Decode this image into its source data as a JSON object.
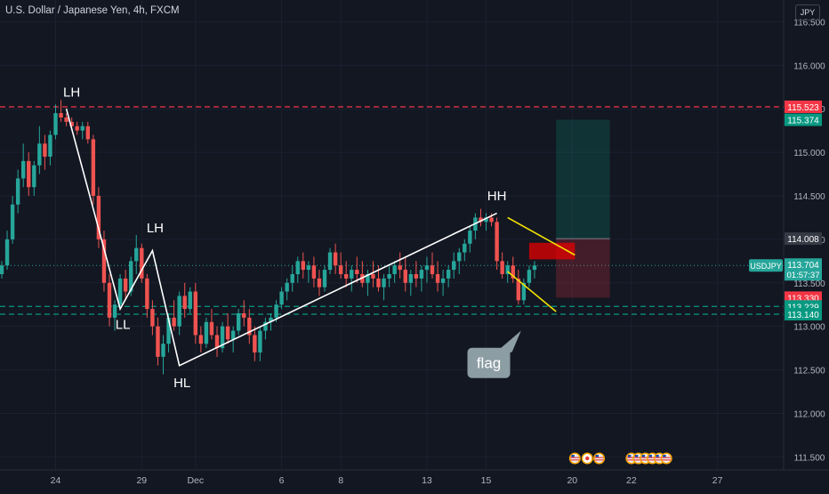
{
  "header": {
    "title": "U.S. Dollar / Japanese Yen, 4h, FXCM"
  },
  "currency_button": "JPY",
  "colors": {
    "background": "#131722",
    "up": "#26a69a",
    "down": "#ef5350",
    "axis_text": "#b2b5be",
    "grid": "#1c2030",
    "structure": "#ffffff",
    "flag_lines": "#f5e400",
    "resistance": "#f23645",
    "support": "#089981"
  },
  "chart_data": {
    "type": "candlestick",
    "title": "U.S. Dollar / Japanese Yen, 4h, FXCM",
    "symbol": "USDJPY",
    "ylim": [
      111.35,
      116.75
    ],
    "y_ticks": [
      116.5,
      116.0,
      115.5,
      115.0,
      114.5,
      114.0,
      113.5,
      113.0,
      112.5,
      112.0,
      111.5
    ],
    "y_tick_labels": [
      "116.500",
      "116.000",
      "115.500",
      "115.000",
      "114.500",
      "114.000",
      "113.500",
      "113.000",
      "112.500",
      "112.000",
      "111.500"
    ],
    "x_ticks": [
      {
        "label": "24",
        "idx": 10
      },
      {
        "label": "29",
        "idx": 26
      },
      {
        "label": "Dec",
        "idx": 36
      },
      {
        "label": "6",
        "idx": 52
      },
      {
        "label": "8",
        "idx": 63
      },
      {
        "label": "13",
        "idx": 79
      },
      {
        "label": "15",
        "idx": 90
      },
      {
        "label": "20",
        "idx": 106
      },
      {
        "label": "22",
        "idx": 117
      },
      {
        "label": "27",
        "idx": 133
      }
    ],
    "x_range": [
      0,
      143
    ],
    "ohlc": [
      [
        113.6,
        113.75,
        113.55,
        113.7
      ],
      [
        113.7,
        114.1,
        113.65,
        114.0
      ],
      [
        114.0,
        114.5,
        113.95,
        114.4
      ],
      [
        114.4,
        114.8,
        114.3,
        114.7
      ],
      [
        114.7,
        115.1,
        114.6,
        114.9
      ],
      [
        114.9,
        115.0,
        114.5,
        114.6
      ],
      [
        114.6,
        114.9,
        114.5,
        114.85
      ],
      [
        114.85,
        115.3,
        114.75,
        115.1
      ],
      [
        115.1,
        115.2,
        114.8,
        114.95
      ],
      [
        114.95,
        115.25,
        114.85,
        115.2
      ],
      [
        115.2,
        115.55,
        115.15,
        115.45
      ],
      [
        115.45,
        115.6,
        115.35,
        115.4
      ],
      [
        115.4,
        115.45,
        115.3,
        115.35
      ],
      [
        115.35,
        115.4,
        115.25,
        115.3
      ],
      [
        115.3,
        115.35,
        115.2,
        115.25
      ],
      [
        115.25,
        115.35,
        115.15,
        115.3
      ],
      [
        115.3,
        115.35,
        115.1,
        115.15
      ],
      [
        115.15,
        115.2,
        114.4,
        114.5
      ],
      [
        114.5,
        114.6,
        113.9,
        114.0
      ],
      [
        114.0,
        114.1,
        113.4,
        113.5
      ],
      [
        113.5,
        113.6,
        113.0,
        113.1
      ],
      [
        113.1,
        113.3,
        112.95,
        113.25
      ],
      [
        113.25,
        113.6,
        113.2,
        113.55
      ],
      [
        113.55,
        113.65,
        113.3,
        113.4
      ],
      [
        113.4,
        113.8,
        113.35,
        113.75
      ],
      [
        113.75,
        114.05,
        113.6,
        113.9
      ],
      [
        113.9,
        113.95,
        113.5,
        113.55
      ],
      [
        113.55,
        113.6,
        113.1,
        113.2
      ],
      [
        113.2,
        113.3,
        112.9,
        113.0
      ],
      [
        113.0,
        113.1,
        112.55,
        112.65
      ],
      [
        112.65,
        112.9,
        112.45,
        112.8
      ],
      [
        112.8,
        113.15,
        112.7,
        113.1
      ],
      [
        113.1,
        113.3,
        112.95,
        113.0
      ],
      [
        113.0,
        113.4,
        112.9,
        113.35
      ],
      [
        113.35,
        113.5,
        113.1,
        113.2
      ],
      [
        113.2,
        113.45,
        113.15,
        113.4
      ],
      [
        113.4,
        113.5,
        112.8,
        112.9
      ],
      [
        112.9,
        113.0,
        112.7,
        112.8
      ],
      [
        112.8,
        113.1,
        112.75,
        113.05
      ],
      [
        113.05,
        113.2,
        112.85,
        112.9
      ],
      [
        112.9,
        113.0,
        112.65,
        112.75
      ],
      [
        112.75,
        113.05,
        112.7,
        113.0
      ],
      [
        113.0,
        113.15,
        112.8,
        112.85
      ],
      [
        112.85,
        113.0,
        112.7,
        112.95
      ],
      [
        112.95,
        113.2,
        112.9,
        113.15
      ],
      [
        113.15,
        113.3,
        113.0,
        113.1
      ],
      [
        113.1,
        113.2,
        112.8,
        112.9
      ],
      [
        112.9,
        113.0,
        112.6,
        112.7
      ],
      [
        112.7,
        113.0,
        112.6,
        112.95
      ],
      [
        112.95,
        113.1,
        112.85,
        113.05
      ],
      [
        113.05,
        113.15,
        112.95,
        113.1
      ],
      [
        113.1,
        113.3,
        113.05,
        113.25
      ],
      [
        113.25,
        113.45,
        113.2,
        113.4
      ],
      [
        113.4,
        113.55,
        113.3,
        113.5
      ],
      [
        113.5,
        113.7,
        113.4,
        113.6
      ],
      [
        113.6,
        113.8,
        113.5,
        113.75
      ],
      [
        113.75,
        113.85,
        113.55,
        113.65
      ],
      [
        113.65,
        113.75,
        113.5,
        113.7
      ],
      [
        113.7,
        113.8,
        113.45,
        113.55
      ],
      [
        113.55,
        113.65,
        113.35,
        113.45
      ],
      [
        113.45,
        113.7,
        113.4,
        113.65
      ],
      [
        113.65,
        113.9,
        113.6,
        113.85
      ],
      [
        113.85,
        113.95,
        113.6,
        113.7
      ],
      [
        113.7,
        113.85,
        113.55,
        113.6
      ],
      [
        113.6,
        113.75,
        113.45,
        113.55
      ],
      [
        113.55,
        113.7,
        113.4,
        113.65
      ],
      [
        113.65,
        113.8,
        113.5,
        113.6
      ],
      [
        113.6,
        113.75,
        113.45,
        113.5
      ],
      [
        113.5,
        113.65,
        113.35,
        113.6
      ],
      [
        113.6,
        113.75,
        113.45,
        113.55
      ],
      [
        113.55,
        113.7,
        113.4,
        113.45
      ],
      [
        113.45,
        113.6,
        113.3,
        113.55
      ],
      [
        113.55,
        113.7,
        113.45,
        113.6
      ],
      [
        113.6,
        113.75,
        113.5,
        113.7
      ],
      [
        113.7,
        113.85,
        113.55,
        113.65
      ],
      [
        113.65,
        113.8,
        113.4,
        113.5
      ],
      [
        113.5,
        113.65,
        113.35,
        113.6
      ],
      [
        113.6,
        113.75,
        113.45,
        113.55
      ],
      [
        113.55,
        113.7,
        113.4,
        113.65
      ],
      [
        113.65,
        113.8,
        113.5,
        113.7
      ],
      [
        113.7,
        113.85,
        113.55,
        113.6
      ],
      [
        113.6,
        113.75,
        113.4,
        113.5
      ],
      [
        113.5,
        113.65,
        113.35,
        113.55
      ],
      [
        113.55,
        113.7,
        113.45,
        113.65
      ],
      [
        113.65,
        113.85,
        113.55,
        113.75
      ],
      [
        113.75,
        113.9,
        113.6,
        113.85
      ],
      [
        113.85,
        114.0,
        113.75,
        113.95
      ],
      [
        113.95,
        114.15,
        113.85,
        114.1
      ],
      [
        114.1,
        114.3,
        114.0,
        114.25
      ],
      [
        114.25,
        114.35,
        114.15,
        114.2
      ],
      [
        114.2,
        114.3,
        114.1,
        114.25
      ],
      [
        114.25,
        114.3,
        114.15,
        114.2
      ],
      [
        114.2,
        114.25,
        113.65,
        113.75
      ],
      [
        113.75,
        113.85,
        113.55,
        113.6
      ],
      [
        113.6,
        113.75,
        113.5,
        113.7
      ],
      [
        113.7,
        113.8,
        113.5,
        113.55
      ],
      [
        113.55,
        113.65,
        113.25,
        113.3
      ],
      [
        113.3,
        113.55,
        113.25,
        113.5
      ],
      [
        113.5,
        113.7,
        113.45,
        113.65
      ],
      [
        113.65,
        113.75,
        113.55,
        113.7
      ]
    ],
    "current_price": {
      "symbol": "USDJPY",
      "value": "113.704",
      "countdown": "01:57:37"
    },
    "price_labels": [
      {
        "value": 115.523,
        "text": "115.523",
        "color": "#f23645"
      },
      {
        "value": 115.374,
        "text": "115.374",
        "color": "#089981"
      },
      {
        "value": 114.008,
        "text": "114.008",
        "color": "#363a45"
      },
      {
        "value": 113.33,
        "text": "113.330",
        "color": "#f23645"
      },
      {
        "value": 113.229,
        "text": "113.229",
        "color": "#089981"
      },
      {
        "value": 113.14,
        "text": "113.140",
        "color": "#089981"
      }
    ],
    "horizontal_lines": [
      {
        "value": 115.523,
        "color": "#f23645",
        "style": "dashed"
      },
      {
        "value": 113.229,
        "color": "#089981",
        "style": "dashed"
      },
      {
        "value": 113.14,
        "color": "#089981",
        "style": "dashed"
      }
    ],
    "position": {
      "x_start": 103,
      "x_end": 113,
      "entry": 114.008,
      "stop": 113.33,
      "target": 115.374
    },
    "structure_path": [
      {
        "idx": 12,
        "price": 115.5
      },
      {
        "idx": 22,
        "price": 113.2
      },
      {
        "idx": 28,
        "price": 113.87
      },
      {
        "idx": 33,
        "price": 112.55
      },
      {
        "idx": 92,
        "price": 114.3
      }
    ],
    "structure_labels": [
      {
        "text": "LH",
        "idx": 13,
        "price": 115.64
      },
      {
        "text": "LL",
        "idx": 22.5,
        "price": 112.97
      },
      {
        "text": "LH",
        "idx": 28.5,
        "price": 114.08
      },
      {
        "text": "HL",
        "idx": 33.5,
        "price": 112.3
      },
      {
        "text": "HH",
        "idx": 92,
        "price": 114.45
      }
    ],
    "flag_channel": [
      {
        "from": {
          "idx": 94,
          "price": 114.25
        },
        "to": {
          "idx": 106.5,
          "price": 113.82
        }
      },
      {
        "from": {
          "idx": 94,
          "price": 113.63
        },
        "to": {
          "idx": 103,
          "price": 113.17
        }
      }
    ],
    "resistance_box": {
      "idx_start": 98,
      "idx_end": 106.5,
      "top": 113.96,
      "bottom": 113.77
    },
    "callout": {
      "text": "flag",
      "idx": 90.5,
      "price": 112.58,
      "pointer_idx": 96.5,
      "pointer_price": 112.95
    },
    "events": [
      {
        "idx": 106.5,
        "kind": "us"
      },
      {
        "idx": 108.8,
        "kind": "jp"
      },
      {
        "idx": 111,
        "kind": "us"
      },
      {
        "idx": 117,
        "kind": "us"
      },
      {
        "idx": 118.3,
        "kind": "us"
      },
      {
        "idx": 119.6,
        "kind": "us"
      },
      {
        "idx": 120.9,
        "kind": "misc"
      },
      {
        "idx": 122.2,
        "kind": "misc"
      },
      {
        "idx": 123.5,
        "kind": "misc"
      }
    ]
  }
}
